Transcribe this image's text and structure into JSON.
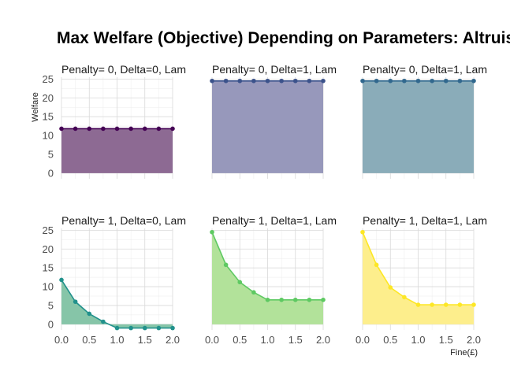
{
  "chart_data": {
    "type": "area",
    "title": "Max Welfare (Objective) Depending on Parameters: Altruism,",
    "xlabel": "Fine(£)",
    "ylabel": "Welfare",
    "x": [
      0.0,
      0.25,
      0.5,
      0.75,
      1.0,
      1.25,
      1.5,
      1.75,
      2.0
    ],
    "xlim": [
      0,
      2
    ],
    "ylim": [
      -1.5,
      25.5
    ],
    "x_ticks": [
      0.0,
      0.5,
      1.0,
      1.5,
      2.0
    ],
    "x_tick_labels": [
      "0.0",
      "0.5",
      "1.0",
      "1.5",
      "2.0"
    ],
    "y_ticks": [
      0,
      5,
      10,
      15,
      20,
      25
    ],
    "y_tick_labels": [
      "0",
      "5",
      "10",
      "15",
      "20",
      "25"
    ],
    "grid": true,
    "layout": "facet-grid 2 rows x 3 columns",
    "panels": [
      {
        "label": "Penalty= 0, Delta=0, Lam",
        "color": "#440154",
        "fill": "#8d6a93",
        "values": [
          11.8,
          11.8,
          11.8,
          11.8,
          11.8,
          11.8,
          11.8,
          11.8,
          11.8
        ]
      },
      {
        "label": "Penalty= 0, Delta=1, Lam",
        "color": "#3b528b",
        "fill": "#9798bb",
        "values": [
          24.5,
          24.5,
          24.5,
          24.5,
          24.5,
          24.5,
          24.5,
          24.5,
          24.5
        ]
      },
      {
        "label": "Penalty= 0, Delta=1, Lam",
        "color": "#31688e",
        "fill": "#8aacb9",
        "values": [
          24.5,
          24.5,
          24.5,
          24.5,
          24.5,
          24.5,
          24.5,
          24.5,
          24.5
        ]
      },
      {
        "label": "Penalty= 1, Delta=0, Lam",
        "color": "#21918c",
        "fill": "#86c5a8",
        "values": [
          11.8,
          6.0,
          2.8,
          0.7,
          -1.0,
          -1.0,
          -1.0,
          -1.0,
          -1.0
        ]
      },
      {
        "label": "Penalty= 1, Delta=1, Lam",
        "color": "#5ec962",
        "fill": "#b2e29a",
        "values": [
          24.5,
          15.8,
          11.2,
          8.5,
          6.5,
          6.5,
          6.5,
          6.5,
          6.5
        ]
      },
      {
        "label": "Penalty= 1, Delta=1, Lam",
        "color": "#fde725",
        "fill": "#fdee8c",
        "values": [
          24.5,
          15.8,
          9.8,
          7.2,
          5.2,
          5.2,
          5.2,
          5.2,
          5.2
        ]
      }
    ]
  }
}
